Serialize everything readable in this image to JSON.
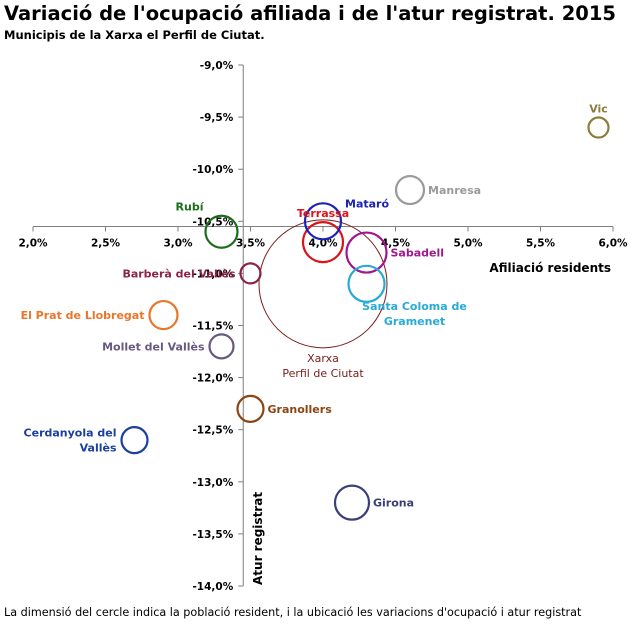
{
  "chart_data": {
    "type": "scatter",
    "bubble": true,
    "title": "Variació de l'ocupació afiliada i de l'atur registrat. 2015",
    "subtitle": "Municipis de la Xarxa el Perfil de Ciutat.",
    "footnote": "La dimensió del cercle indica la població resident, i la ubicació les variacions d'ocupació i atur registrat",
    "xlabel": "Afiliació residents",
    "ylabel": "Atur registrat",
    "xlim": [
      2.0,
      6.0
    ],
    "ylim": [
      -14.0,
      -9.0
    ],
    "x_ticks": [
      2.0,
      2.5,
      3.0,
      3.5,
      4.0,
      4.5,
      5.0,
      5.5,
      6.0
    ],
    "x_tick_labels": [
      "2,0%",
      "2,5%",
      "3,0%",
      "3,5%",
      "4,0%",
      "4,5%",
      "5,0%",
      "5,5%",
      "6,0%"
    ],
    "y_ticks": [
      -9.0,
      -9.5,
      -10.0,
      -10.5,
      -11.0,
      -11.5,
      -12.0,
      -12.5,
      -13.0,
      -13.5,
      -14.0
    ],
    "y_tick_labels": [
      "-9,0%",
      "-9,5%",
      "-10,0%",
      "-10,5%",
      "-11,0%",
      "-11,5%",
      "-12,0%",
      "-12,5%",
      "-13,0%",
      "-13,5%",
      "-14,0%"
    ],
    "axes_cross": {
      "x": 3.45,
      "y": -10.55
    },
    "grid": false,
    "points": [
      {
        "label": "Vic",
        "x": 5.9,
        "y": -9.6,
        "size": 1.0,
        "color": "#8b7d3a",
        "label_pos": "above"
      },
      {
        "label": "Manresa",
        "x": 4.6,
        "y": -10.2,
        "size": 1.4,
        "color": "#9a9a9a",
        "label_pos": "right"
      },
      {
        "label": "Rubí",
        "x": 3.3,
        "y": -10.6,
        "size": 1.6,
        "color": "#1a6e1a",
        "label_pos": "above-left"
      },
      {
        "label": "Terrassa",
        "x": 4.0,
        "y": -10.7,
        "size": 2.0,
        "color": "#d9141a",
        "label_pos": "above"
      },
      {
        "label": "Mataró",
        "x": 4.0,
        "y": -10.5,
        "size": 1.8,
        "color": "#1a23b5",
        "label_pos": "above-right"
      },
      {
        "label": "Sabadell",
        "x": 4.3,
        "y": -10.8,
        "size": 2.0,
        "color": "#a0178f",
        "label_pos": "right"
      },
      {
        "label": "Barberà del Vallès",
        "x": 3.5,
        "y": -11.0,
        "size": 1.0,
        "color": "#8b2349",
        "label_pos": "left"
      },
      {
        "label": "Santa Coloma de Gramenet",
        "x": 4.3,
        "y": -11.1,
        "size": 1.8,
        "color": "#27aad6",
        "label_pos": "below-right"
      },
      {
        "label": "El Prat de Llobregat",
        "x": 2.9,
        "y": -11.4,
        "size": 1.4,
        "color": "#e8762b",
        "label_pos": "left"
      },
      {
        "label": "Mollet del Vallès",
        "x": 3.3,
        "y": -11.7,
        "size": 1.2,
        "color": "#675a7e",
        "label_pos": "left"
      },
      {
        "label": "Xarxa Perfil de Ciutat",
        "x": 4.0,
        "y": -11.1,
        "size": 6.4,
        "color": "#7a1d1d",
        "label_pos": "below"
      },
      {
        "label": "Granollers",
        "x": 3.5,
        "y": -12.3,
        "size": 1.3,
        "color": "#8b4513",
        "label_pos": "right"
      },
      {
        "label": "Cerdanyola del Vallès",
        "x": 2.7,
        "y": -12.6,
        "size": 1.3,
        "color": "#1a3fa0",
        "label_pos": "left"
      },
      {
        "label": "Girona",
        "x": 4.2,
        "y": -13.2,
        "size": 1.7,
        "color": "#3a3f7a",
        "label_pos": "right"
      }
    ]
  }
}
